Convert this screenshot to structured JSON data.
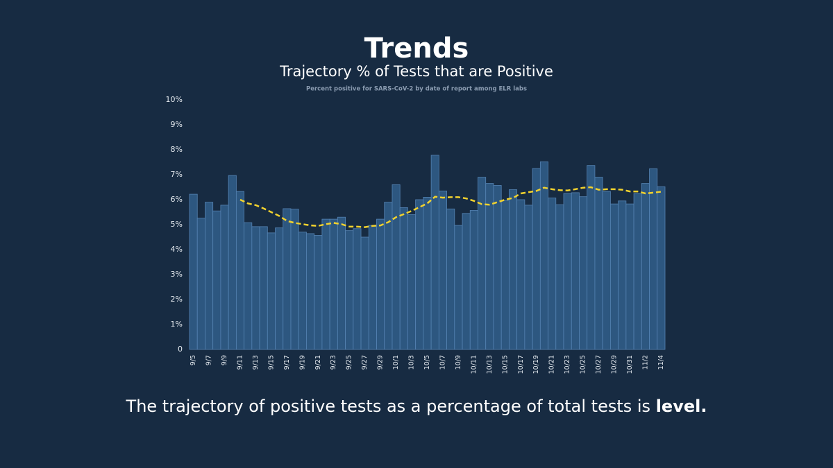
{
  "chart_data": {
    "type": "bar",
    "title": "Trends",
    "subtitle": "Trajectory % of Tests that are Positive",
    "note": "Percent positive for SARS-CoV-2 by date of report among ELR labs",
    "caption": [
      "The trajectory of positive tests as a percentage of total tests is ",
      "level."
    ],
    "categories": [
      "9/5",
      null,
      "9/7",
      null,
      "9/9",
      null,
      "9/11",
      null,
      "9/13",
      null,
      "9/15",
      null,
      "9/17",
      null,
      "9/19",
      null,
      "9/21",
      null,
      "9/23",
      null,
      "9/25",
      null,
      "9/27",
      null,
      "9/29",
      null,
      "10/1",
      null,
      "10/3",
      null,
      "10/5",
      null,
      "10/7",
      null,
      "10/9",
      null,
      "10/11",
      null,
      "10/13",
      null,
      "10/15",
      null,
      "10/17",
      null,
      "10/19",
      null,
      "10/21",
      null,
      "10/23",
      null,
      "10/25",
      null,
      "10/27",
      null,
      "10/29",
      null,
      "10/31",
      null,
      "11/2",
      null,
      "11/4"
    ],
    "values": [
      6.22,
      5.26,
      5.9,
      5.55,
      5.78,
      6.97,
      6.33,
      5.08,
      4.92,
      4.92,
      4.67,
      4.87,
      5.64,
      5.62,
      4.7,
      4.64,
      4.57,
      5.22,
      5.22,
      5.3,
      4.76,
      4.84,
      4.5,
      4.97,
      5.22,
      5.9,
      6.6,
      5.68,
      5.4,
      6.0,
      6.1,
      7.78,
      6.35,
      5.63,
      4.97,
      5.45,
      5.57,
      6.9,
      6.65,
      6.57,
      5.97,
      6.4,
      6.0,
      5.78,
      7.25,
      7.52,
      6.07,
      5.8,
      6.25,
      6.28,
      6.12,
      7.37,
      6.9,
      6.33,
      5.83,
      5.95,
      5.83,
      6.25,
      6.65,
      7.24,
      6.52
    ],
    "trend": [
      null,
      null,
      null,
      null,
      null,
      null,
      6.0,
      5.85,
      5.78,
      5.65,
      5.5,
      5.35,
      5.15,
      5.07,
      5.02,
      4.97,
      4.95,
      5.02,
      5.07,
      5.02,
      4.92,
      4.92,
      4.9,
      4.95,
      4.97,
      5.1,
      5.3,
      5.42,
      5.55,
      5.7,
      5.85,
      6.12,
      6.08,
      6.1,
      6.1,
      6.05,
      5.95,
      5.82,
      5.8,
      5.9,
      6.0,
      6.07,
      6.25,
      6.3,
      6.35,
      6.48,
      6.42,
      6.38,
      6.37,
      6.42,
      6.48,
      6.5,
      6.4,
      6.42,
      6.42,
      6.4,
      6.33,
      6.33,
      6.25,
      6.28,
      6.32
    ],
    "color": "#2d5780",
    "edge_color": "#5583b3",
    "trend_color": "#f2d22e",
    "ylim": [
      0,
      10
    ],
    "yticks": [
      0,
      {
        "value": 1,
        "label": "1%"
      },
      {
        "value": 2,
        "label": "2%"
      },
      {
        "value": 3,
        "label": "3%"
      },
      {
        "value": 4,
        "label": "4%"
      },
      {
        "value": 5,
        "label": "5%"
      },
      {
        "value": 6,
        "label": "6%"
      },
      {
        "value": 7,
        "label": "7%"
      },
      {
        "value": 8,
        "label": "8%"
      },
      {
        "value": 9,
        "label": "9%"
      },
      {
        "value": 10,
        "label": "10%"
      }
    ]
  }
}
